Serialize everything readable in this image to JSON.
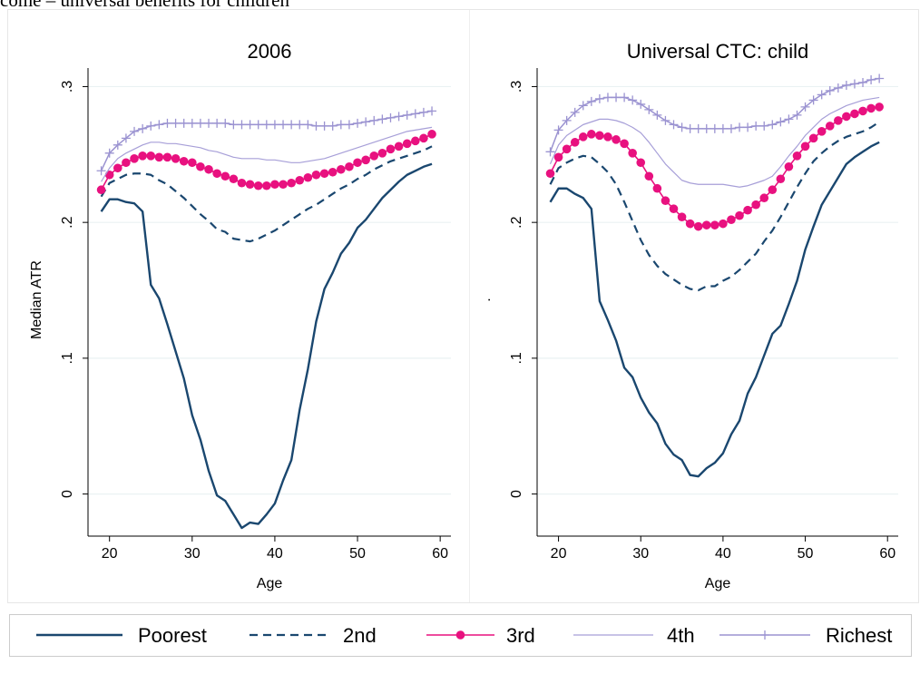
{
  "header": "come – universal benefits for children",
  "chart_data": [
    {
      "type": "line",
      "title": "2006",
      "xlabel": "Age",
      "ylabel": "Median ATR",
      "xlim": [
        17.4,
        61.3
      ],
      "ylim": [
        -0.031,
        0.317
      ],
      "xticks": [
        20,
        30,
        40,
        50,
        60
      ],
      "yticks": [
        0,
        {
          "value": 0.1,
          "label": ".1"
        },
        {
          "value": 0.2,
          "label": ".2"
        },
        {
          "value": 0.3,
          "label": ".3"
        }
      ],
      "grid": true,
      "x": [
        19,
        20,
        21,
        22,
        23,
        24,
        25,
        26,
        27,
        28,
        29,
        30,
        31,
        32,
        33,
        34,
        35,
        36,
        37,
        38,
        39,
        40,
        41,
        42,
        43,
        44,
        45,
        46,
        47,
        48,
        49,
        50,
        51,
        52,
        53,
        54,
        55,
        56,
        57,
        58,
        59
      ],
      "series": [
        {
          "name": "Poorest",
          "color": "#1a476f",
          "dash": "solid",
          "width": 2.4,
          "values": [
            0.208,
            0.217,
            0.217,
            0.215,
            0.214,
            0.208,
            0.154,
            0.144,
            0.125,
            0.105,
            0.085,
            0.058,
            0.04,
            0.017,
            -0.001,
            -0.005,
            -0.015,
            -0.025,
            -0.021,
            -0.022,
            -0.015,
            -0.007,
            0.01,
            0.025,
            0.062,
            0.092,
            0.127,
            0.151,
            0.163,
            0.177,
            0.185,
            0.196,
            0.202,
            0.21,
            0.218,
            0.224,
            0.23,
            0.235,
            0.238,
            0.241,
            0.243
          ]
        },
        {
          "name": "2nd",
          "color": "#1a476f",
          "dash": "dashed",
          "width": 2.2,
          "values": [
            0.219,
            0.229,
            0.232,
            0.235,
            0.236,
            0.236,
            0.235,
            0.231,
            0.228,
            0.223,
            0.218,
            0.212,
            0.206,
            0.201,
            0.195,
            0.193,
            0.188,
            0.187,
            0.186,
            0.188,
            0.191,
            0.194,
            0.198,
            0.202,
            0.206,
            0.21,
            0.213,
            0.217,
            0.221,
            0.225,
            0.228,
            0.232,
            0.235,
            0.239,
            0.242,
            0.245,
            0.247,
            0.249,
            0.251,
            0.253,
            0.256
          ]
        },
        {
          "name": "3rd",
          "color": "#e8117f",
          "dash": "solid",
          "width": 1.6,
          "marker": "circle",
          "values": [
            0.224,
            0.235,
            0.24,
            0.244,
            0.247,
            0.249,
            0.249,
            0.248,
            0.248,
            0.247,
            0.245,
            0.244,
            0.241,
            0.239,
            0.236,
            0.234,
            0.232,
            0.229,
            0.228,
            0.227,
            0.227,
            0.228,
            0.228,
            0.229,
            0.231,
            0.233,
            0.235,
            0.236,
            0.237,
            0.239,
            0.241,
            0.244,
            0.246,
            0.249,
            0.251,
            0.254,
            0.256,
            0.258,
            0.26,
            0.262,
            0.265
          ]
        },
        {
          "name": "4th",
          "color": "#a79fd8",
          "dash": "solid",
          "width": 1.2,
          "values": [
            0.23,
            0.24,
            0.247,
            0.251,
            0.254,
            0.257,
            0.259,
            0.259,
            0.258,
            0.258,
            0.257,
            0.256,
            0.255,
            0.253,
            0.252,
            0.25,
            0.248,
            0.247,
            0.247,
            0.247,
            0.246,
            0.246,
            0.245,
            0.244,
            0.244,
            0.245,
            0.246,
            0.247,
            0.249,
            0.251,
            0.253,
            0.255,
            0.257,
            0.259,
            0.261,
            0.263,
            0.265,
            0.267,
            0.268,
            0.269,
            0.27
          ]
        },
        {
          "name": "Richest",
          "color": "#9b93d1",
          "dash": "solid",
          "width": 1.5,
          "marker": "plus",
          "values": [
            0.238,
            0.251,
            0.257,
            0.262,
            0.267,
            0.269,
            0.271,
            0.272,
            0.273,
            0.273,
            0.273,
            0.273,
            0.273,
            0.273,
            0.273,
            0.273,
            0.272,
            0.272,
            0.272,
            0.272,
            0.272,
            0.272,
            0.272,
            0.272,
            0.272,
            0.272,
            0.271,
            0.271,
            0.271,
            0.272,
            0.272,
            0.273,
            0.274,
            0.275,
            0.276,
            0.277,
            0.278,
            0.279,
            0.28,
            0.281,
            0.282
          ]
        }
      ]
    },
    {
      "type": "line",
      "title": "Universal CTC: child",
      "xlabel": "Age",
      "ylabel": ".",
      "xlim": [
        17.4,
        61.3
      ],
      "ylim": [
        -0.031,
        0.317
      ],
      "xticks": [
        20,
        30,
        40,
        50,
        60
      ],
      "yticks": [
        0,
        {
          "value": 0.1,
          "label": ".1"
        },
        {
          "value": 0.2,
          "label": ".2"
        },
        {
          "value": 0.3,
          "label": ".3"
        }
      ],
      "grid": true,
      "x": [
        19,
        20,
        21,
        22,
        23,
        24,
        25,
        26,
        27,
        28,
        29,
        30,
        31,
        32,
        33,
        34,
        35,
        36,
        37,
        38,
        39,
        40,
        41,
        42,
        43,
        44,
        45,
        46,
        47,
        48,
        49,
        50,
        51,
        52,
        53,
        54,
        55,
        56,
        57,
        58,
        59
      ],
      "series": [
        {
          "color": "#1a476f",
          "values": [
            0.215,
            0.225,
            0.225,
            0.221,
            0.218,
            0.21,
            0.142,
            0.128,
            0.113,
            0.093,
            0.086,
            0.071,
            0.06,
            0.052,
            0.037,
            0.029,
            0.025,
            0.014,
            0.013,
            0.019,
            0.023,
            0.03,
            0.044,
            0.054,
            0.074,
            0.086,
            0.102,
            0.118,
            0.124,
            0.14,
            0.157,
            0.18,
            0.197,
            0.213,
            0.223,
            0.233,
            0.243,
            0.248,
            0.252,
            0.256,
            0.259
          ]
        },
        {
          "color": "#1a476f",
          "values": [
            0.228,
            0.24,
            0.244,
            0.247,
            0.249,
            0.248,
            0.243,
            0.237,
            0.228,
            0.215,
            0.201,
            0.187,
            0.176,
            0.168,
            0.162,
            0.158,
            0.154,
            0.151,
            0.15,
            0.153,
            0.153,
            0.157,
            0.16,
            0.165,
            0.171,
            0.177,
            0.186,
            0.194,
            0.204,
            0.215,
            0.226,
            0.236,
            0.245,
            0.251,
            0.256,
            0.26,
            0.263,
            0.265,
            0.267,
            0.27,
            0.274
          ]
        },
        {
          "color": "#e8117f",
          "values": [
            0.236,
            0.248,
            0.254,
            0.259,
            0.263,
            0.265,
            0.264,
            0.263,
            0.261,
            0.258,
            0.251,
            0.244,
            0.234,
            0.225,
            0.216,
            0.21,
            0.204,
            0.199,
            0.197,
            0.198,
            0.198,
            0.199,
            0.202,
            0.205,
            0.209,
            0.213,
            0.218,
            0.224,
            0.232,
            0.241,
            0.249,
            0.256,
            0.262,
            0.267,
            0.271,
            0.275,
            0.278,
            0.28,
            0.282,
            0.284,
            0.285
          ]
        },
        {
          "color": "#a79fd8",
          "values": [
            0.243,
            0.257,
            0.264,
            0.268,
            0.272,
            0.274,
            0.276,
            0.276,
            0.275,
            0.273,
            0.27,
            0.266,
            0.259,
            0.251,
            0.243,
            0.237,
            0.231,
            0.229,
            0.228,
            0.228,
            0.228,
            0.228,
            0.227,
            0.226,
            0.227,
            0.229,
            0.231,
            0.234,
            0.241,
            0.249,
            0.256,
            0.264,
            0.27,
            0.276,
            0.28,
            0.283,
            0.286,
            0.288,
            0.29,
            0.291,
            0.292
          ]
        },
        {
          "color": "#9b93d1",
          "values": [
            0.252,
            0.268,
            0.275,
            0.281,
            0.286,
            0.289,
            0.291,
            0.292,
            0.292,
            0.292,
            0.29,
            0.287,
            0.283,
            0.279,
            0.275,
            0.272,
            0.27,
            0.269,
            0.269,
            0.269,
            0.269,
            0.269,
            0.269,
            0.27,
            0.27,
            0.271,
            0.271,
            0.272,
            0.274,
            0.276,
            0.279,
            0.285,
            0.29,
            0.294,
            0.297,
            0.299,
            0.301,
            0.302,
            0.303,
            0.305,
            0.306
          ]
        }
      ]
    }
  ]
}
